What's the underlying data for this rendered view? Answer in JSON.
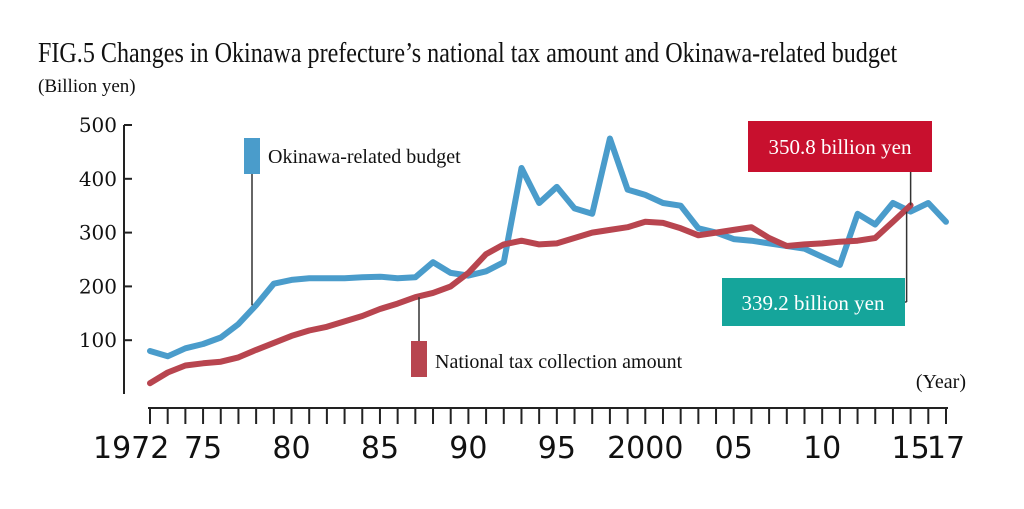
{
  "chart_data": {
    "type": "line",
    "title": "FIG.5  Changes in Okinawa prefecture’s national tax amount and Okinawa-related budget",
    "ylabel": "(Billion yen)",
    "xlabel": "(Year)",
    "ylim": [
      0,
      500
    ],
    "xlim": [
      1972,
      2017
    ],
    "yticks": [
      100,
      200,
      300,
      400,
      500
    ],
    "xtick_labels": [
      {
        "year": 1972,
        "label": "1972"
      },
      {
        "year": 1975,
        "label": "75"
      },
      {
        "year": 1980,
        "label": "80"
      },
      {
        "year": 1985,
        "label": "85"
      },
      {
        "year": 1990,
        "label": "90"
      },
      {
        "year": 1995,
        "label": "95"
      },
      {
        "year": 2000,
        "label": "2000"
      },
      {
        "year": 2005,
        "label": "05"
      },
      {
        "year": 2010,
        "label": "10"
      },
      {
        "year": 2015,
        "label": "15"
      },
      {
        "year": 2017,
        "label": "17"
      }
    ],
    "series": [
      {
        "name": "Okinawa-related budget",
        "color": "#4a9ccb",
        "x": [
          1972,
          1973,
          1974,
          1975,
          1976,
          1977,
          1978,
          1979,
          1980,
          1981,
          1982,
          1983,
          1984,
          1985,
          1986,
          1987,
          1988,
          1989,
          1990,
          1991,
          1992,
          1993,
          1994,
          1995,
          1996,
          1997,
          1998,
          1999,
          2000,
          2001,
          2002,
          2003,
          2004,
          2005,
          2006,
          2007,
          2008,
          2009,
          2010,
          2011,
          2012,
          2013,
          2014,
          2015,
          2016,
          2017
        ],
        "y": [
          80,
          70,
          85,
          93,
          105,
          130,
          165,
          205,
          212,
          215,
          215,
          215,
          217,
          218,
          215,
          217,
          245,
          225,
          220,
          228,
          245,
          420,
          355,
          385,
          345,
          335,
          475,
          380,
          370,
          355,
          350,
          308,
          300,
          288,
          285,
          280,
          275,
          270,
          255,
          240,
          335,
          315,
          355,
          339,
          355,
          320
        ]
      },
      {
        "name": "National tax collection amount",
        "color": "#b8454f",
        "x": [
          1972,
          1973,
          1974,
          1975,
          1976,
          1977,
          1978,
          1979,
          1980,
          1981,
          1982,
          1983,
          1984,
          1985,
          1986,
          1987,
          1988,
          1989,
          1990,
          1991,
          1992,
          1993,
          1994,
          1995,
          1996,
          1997,
          1998,
          1999,
          2000,
          2001,
          2002,
          2003,
          2004,
          2005,
          2006,
          2007,
          2008,
          2009,
          2010,
          2011,
          2012,
          2013,
          2014,
          2015
        ],
        "y": [
          20,
          40,
          53,
          57,
          60,
          68,
          82,
          95,
          108,
          118,
          125,
          135,
          145,
          158,
          168,
          180,
          188,
          200,
          225,
          260,
          278,
          285,
          278,
          280,
          290,
          300,
          305,
          310,
          320,
          318,
          308,
          295,
          300,
          305,
          310,
          290,
          275,
          278,
          280,
          283,
          285,
          290,
          320,
          350.8
        ]
      }
    ],
    "annotations": [
      {
        "text": "Okinawa-related budget",
        "color": "#4a9ccb"
      },
      {
        "text": "National tax collection amount",
        "color": "#b8454f"
      },
      {
        "text": "350.8 billion yen",
        "color": "#c8102e",
        "series": "National tax collection amount",
        "year": 2015
      },
      {
        "text": "339.2 billion yen",
        "color": "#15a59b",
        "series": "Okinawa-related budget",
        "year": 2015
      }
    ]
  }
}
